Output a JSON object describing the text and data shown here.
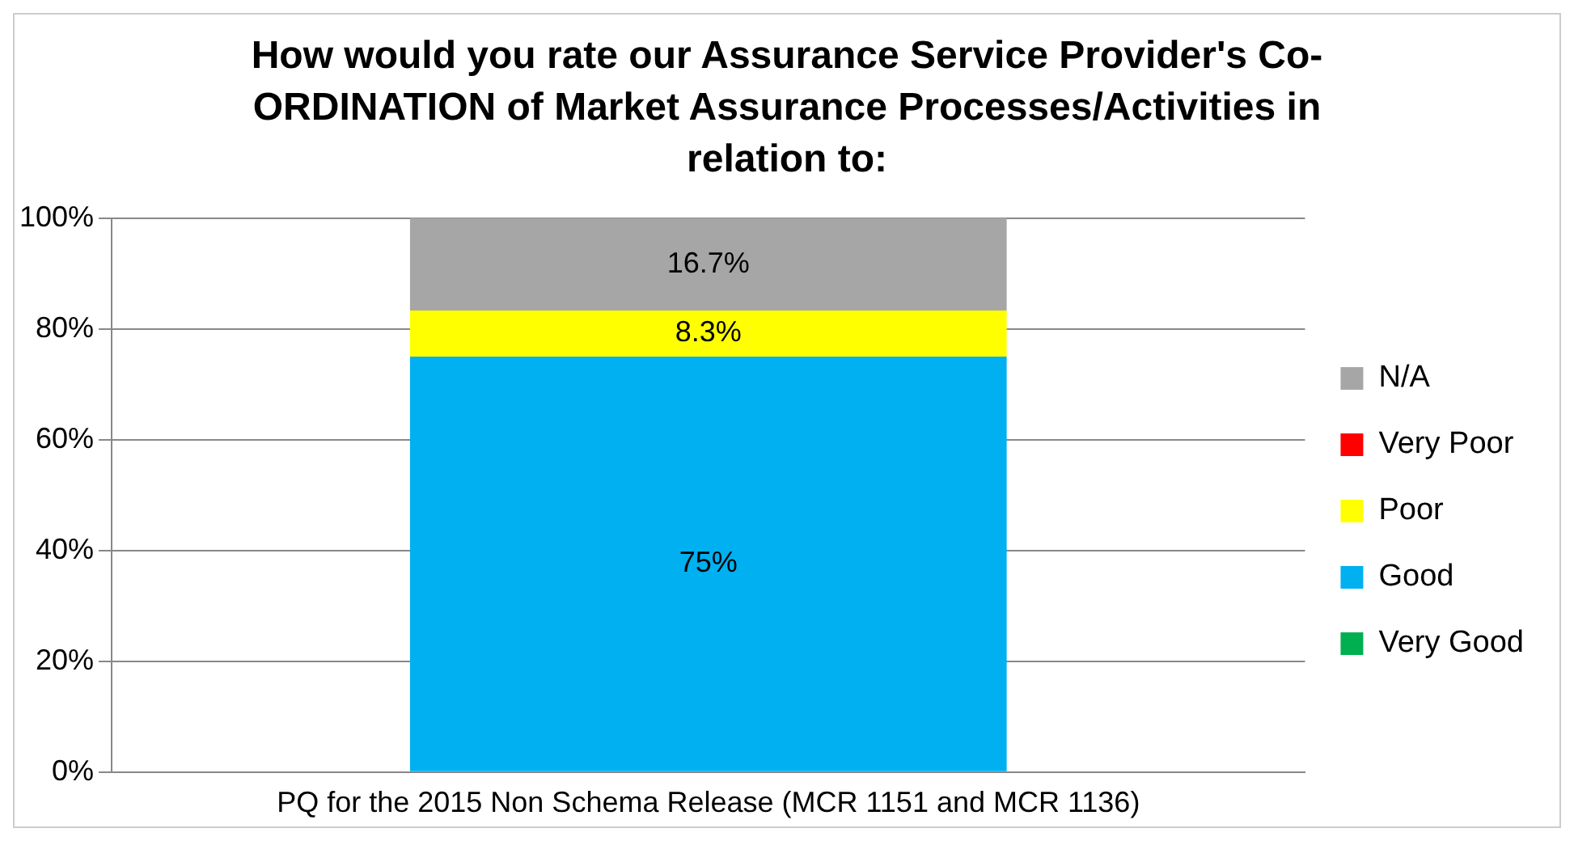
{
  "chart_data": {
    "type": "bar",
    "title": "How would you rate our Assurance Service Provider's Co-ORDINATION of Market Assurance Processes/Activities in relation to:",
    "categories": [
      "PQ for the 2015 Non Schema Release (MCR 1151 and MCR 1136)"
    ],
    "stacked": true,
    "series": [
      {
        "name": "Very Good",
        "color": "#00b050",
        "values": [
          0
        ],
        "value_labels": [
          null
        ]
      },
      {
        "name": "Good",
        "color": "#00b0f0",
        "values": [
          75
        ],
        "value_labels": [
          "75%"
        ]
      },
      {
        "name": "Poor",
        "color": "#ffff00",
        "values": [
          8.3
        ],
        "value_labels": [
          "8.3%"
        ]
      },
      {
        "name": "Very Poor",
        "color": "#ff0000",
        "values": [
          0
        ],
        "value_labels": [
          null
        ]
      },
      {
        "name": "N/A",
        "color": "#a6a6a6",
        "values": [
          16.7
        ],
        "value_labels": [
          "16.7%"
        ]
      }
    ],
    "ylim": [
      0,
      100
    ],
    "yticks": [
      {
        "value": 0,
        "label": "0%"
      },
      {
        "value": 20,
        "label": "20%"
      },
      {
        "value": 40,
        "label": "40%"
      },
      {
        "value": 60,
        "label": "60%"
      },
      {
        "value": 80,
        "label": "80%"
      },
      {
        "value": 100,
        "label": "100%"
      }
    ],
    "grid": "y",
    "legend": "right"
  }
}
